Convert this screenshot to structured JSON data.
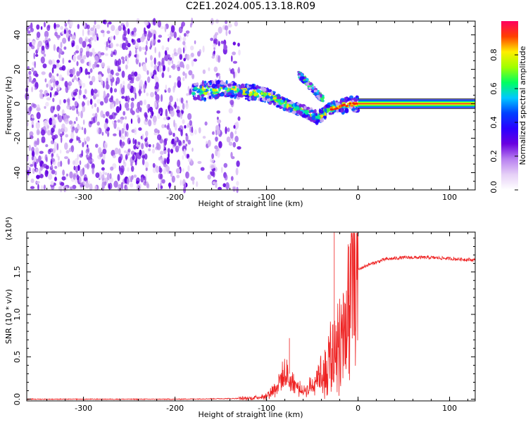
{
  "title": "C2E1.2024.005.13.18.R09",
  "chart_data": [
    {
      "type": "heatmap",
      "panel": "top",
      "xlabel": "Height of straight line (km)",
      "ylabel": "Frequency (Hz)",
      "xlim": [
        -362,
        128
      ],
      "ylim": [
        -50,
        48
      ],
      "xticks": [
        -300,
        -200,
        -100,
        0,
        100
      ],
      "yticks": [
        -40,
        -20,
        0,
        20,
        40
      ],
      "colorbar": {
        "label": "Normalized spectral amplitude",
        "range": [
          0.0,
          1.0
        ],
        "ticks": [
          0.0,
          0.2,
          0.4,
          0.6,
          0.8
        ],
        "tick_labels": [
          "0.0",
          "0.2",
          "0.4",
          "0.6",
          "0.8"
        ],
        "colors": [
          "#ffffff",
          "#e6d0f7",
          "#b880f0",
          "#6a00e0",
          "#2a00ff",
          "#0040ff",
          "#00c8ff",
          "#00ff60",
          "#a0ff00",
          "#ffee00",
          "#ff4000",
          "#ff0060"
        ]
      },
      "features": {
        "noise_region_km": [
          -362,
          -128
        ],
        "signal_track": [
          {
            "x": -180,
            "f": 7
          },
          {
            "x": -160,
            "f": 8
          },
          {
            "x": -140,
            "f": 8
          },
          {
            "x": -120,
            "f": 7
          },
          {
            "x": -100,
            "f": 5
          },
          {
            "x": -80,
            "f": 0
          },
          {
            "x": -60,
            "f": -4
          },
          {
            "x": -45,
            "f": -8
          },
          {
            "x": -30,
            "f": -3
          },
          {
            "x": -15,
            "f": -1
          },
          {
            "x": 0,
            "f": 0
          },
          {
            "x": 128,
            "f": 0
          }
        ],
        "branch_track": [
          {
            "x": -65,
            "f": 17
          },
          {
            "x": -55,
            "f": 12
          },
          {
            "x": -45,
            "f": 6
          },
          {
            "x": -38,
            "f": 3
          }
        ],
        "steady_carrier_km": [
          0,
          128
        ]
      }
    },
    {
      "type": "line",
      "panel": "bottom",
      "xlabel": "Height of straight line (km)",
      "ylabel": "SNR (10 * v/v)",
      "scale_note": "(x10⁴)",
      "xlim": [
        -362,
        128
      ],
      "ylim": [
        -0.02,
        1.97
      ],
      "xticks": [
        -300,
        -200,
        -100,
        0,
        100
      ],
      "yticks": [
        0.0,
        0.5,
        1.0,
        1.5
      ],
      "ytick_labels": [
        "0.0",
        "0.5",
        "1.0",
        "1.5"
      ],
      "series": [
        {
          "name": "SNR",
          "color": "#ee2222",
          "envelope": {
            "x": [
              -362,
              -200,
              -120,
              -100,
              -90,
              -80,
              -70,
              -60,
              -50,
              -40,
              -30,
              -20,
              -12,
              -5,
              10,
              30,
              50,
              80,
              128
            ],
            "y": [
              0.0,
              0.0,
              0.01,
              0.04,
              0.15,
              0.3,
              0.2,
              0.08,
              0.18,
              0.35,
              0.7,
              1.1,
              1.35,
              1.5,
              1.58,
              1.65,
              1.67,
              1.67,
              1.64
            ]
          },
          "spikes": [
            {
              "x": -26,
              "y": 1.97
            },
            {
              "x": -10,
              "y": 1.8
            },
            {
              "x": -75,
              "y": 0.72
            }
          ]
        }
      ]
    }
  ],
  "tick_text": {
    "x": [
      "-300",
      "-200",
      "-100",
      "0",
      "100"
    ],
    "y_top": [
      "-40",
      "-20",
      "0",
      "20",
      "40"
    ]
  }
}
